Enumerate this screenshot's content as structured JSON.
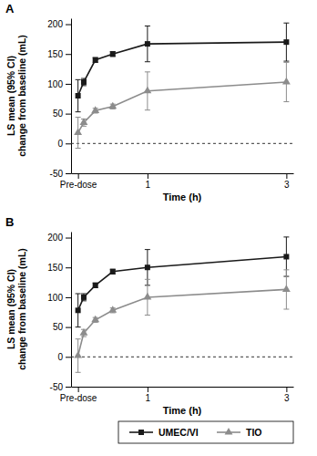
{
  "chart_data": [
    {
      "type": "line",
      "title": "A",
      "x": [
        0,
        0.083,
        0.25,
        0.5,
        1,
        3
      ],
      "xlim": [
        -0.1,
        3.1
      ],
      "xticks": [
        {
          "value": 0,
          "label": "Pre-dose"
        },
        1,
        3
      ],
      "x_label": "Time (h)",
      "y_label": [
        "LS mean (95% CI)",
        "change from baseline (mL)"
      ],
      "ylim": [
        -50,
        210
      ],
      "yticks": [
        -50,
        0,
        50,
        100,
        150,
        200
      ],
      "reference_line": 0,
      "legend": "bottom",
      "series": [
        {
          "name": "UMEC/VI",
          "color": "#1a1a1a",
          "marker": "square",
          "values": [
            80,
            103,
            140,
            150,
            167,
            170
          ],
          "errors": [
            27,
            6,
            4,
            4,
            30,
            32
          ]
        },
        {
          "name": "TIO",
          "color": "#8c8c8c",
          "marker": "triangle",
          "values": [
            18,
            35,
            55,
            62,
            88,
            103
          ],
          "errors": [
            26,
            6,
            4,
            4,
            32,
            33
          ]
        }
      ]
    },
    {
      "type": "line",
      "title": "B",
      "x": [
        0,
        0.083,
        0.25,
        0.5,
        1,
        3
      ],
      "xlim": [
        -0.1,
        3.1
      ],
      "xticks": [
        {
          "value": 0,
          "label": "Pre-dose"
        },
        1,
        3
      ],
      "x_label": "Time (h)",
      "y_label": [
        "LS mean (95% CI)",
        "change from baseline (mL)"
      ],
      "ylim": [
        -50,
        210
      ],
      "yticks": [
        -50,
        0,
        50,
        100,
        150,
        200
      ],
      "reference_line": 0,
      "series": [
        {
          "name": "UMEC/VI",
          "color": "#1a1a1a",
          "marker": "square",
          "values": [
            78,
            100,
            120,
            143,
            150,
            168
          ],
          "errors": [
            28,
            6,
            4,
            4,
            30,
            33
          ]
        },
        {
          "name": "TIO",
          "color": "#8c8c8c",
          "marker": "triangle",
          "values": [
            2,
            40,
            62,
            78,
            100,
            113
          ],
          "errors": [
            28,
            6,
            4,
            4,
            30,
            33
          ]
        }
      ]
    }
  ]
}
